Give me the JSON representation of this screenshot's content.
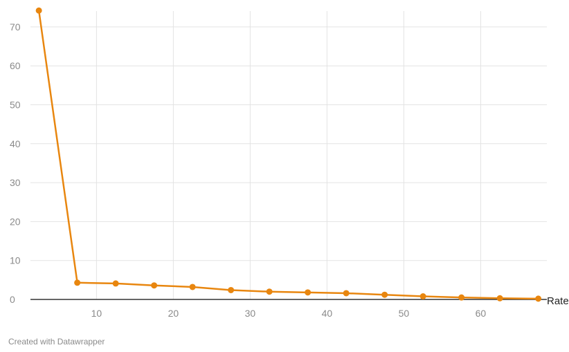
{
  "chart_data": {
    "type": "line",
    "xlabel": "Rate",
    "ylabel": "",
    "xlim": [
      0,
      67
    ],
    "ylim": [
      0,
      72
    ],
    "x_ticks": [
      10,
      20,
      30,
      40,
      50,
      60
    ],
    "y_ticks": [
      0,
      10,
      20,
      30,
      40,
      50,
      60,
      70
    ],
    "grid": true,
    "series": [
      {
        "x": [
          2.5,
          7.5,
          12.5,
          17.5,
          22.5,
          27.5,
          32.5,
          37.5,
          42.5,
          47.5,
          52.5,
          57.5,
          62.5,
          67.5
        ],
        "values": [
          74.2,
          4.3,
          4.1,
          3.6,
          3.2,
          2.4,
          2.0,
          1.8,
          1.6,
          1.2,
          0.8,
          0.5,
          0.3,
          0.2
        ]
      }
    ]
  },
  "colors": {
    "line": "#e8860f",
    "grid": "#e3e3e3",
    "axis": "#333333"
  },
  "footer": {
    "credit": "Created with Datawrapper"
  }
}
